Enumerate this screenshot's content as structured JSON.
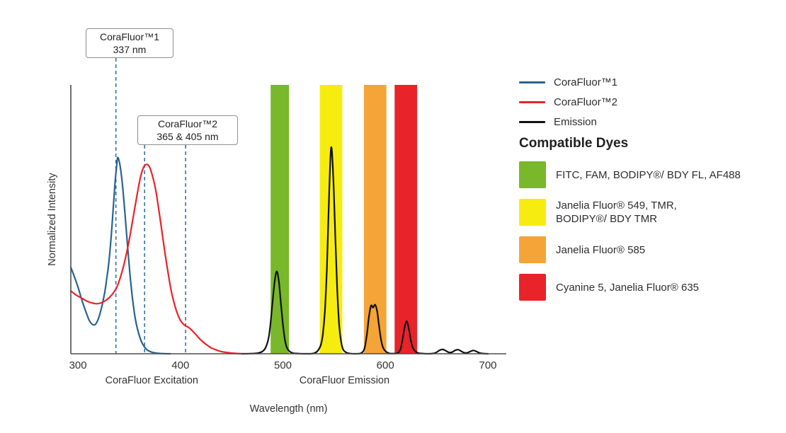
{
  "chart_data": {
    "type": "line",
    "title": "",
    "xlabel": "Wavelength (nm)",
    "ylabel": "Normalized Intensity",
    "xlim": [
      293,
      718
    ],
    "ylim": [
      0,
      1.37
    ],
    "grid": false,
    "legend_position": "right",
    "x_ticks": [
      300,
      400,
      500,
      600,
      700
    ],
    "x_axis_sublabels": [
      {
        "label": "CoraFluor Excitation",
        "anchor_nm": 372
      },
      {
        "label": "CoraFluor Emission",
        "anchor_nm": 560
      }
    ],
    "annotation_line_color": "#3572A3",
    "annotations": [
      {
        "title": "CoraFluor™1",
        "subtitle": "337 nm",
        "lines_nm": [
          337
        ]
      },
      {
        "title": "CoraFluor™2",
        "subtitle": "365 & 405 nm",
        "lines_nm": [
          365,
          405
        ]
      }
    ],
    "bands": [
      {
        "name": "green",
        "color": "#78B82A",
        "x0": 488,
        "x1": 506
      },
      {
        "name": "yellow",
        "color": "#F7EC0F",
        "x0": 536,
        "x1": 558
      },
      {
        "name": "orange",
        "color": "#F5A437",
        "x0": 579,
        "x1": 601
      },
      {
        "name": "red",
        "color": "#E8232A",
        "x0": 609,
        "x1": 631
      }
    ],
    "series": [
      {
        "name": "CoraFluor™1",
        "id": "corafluor1-excitation",
        "color": "#27648F",
        "points": [
          [
            293,
            0.44
          ],
          [
            296,
            0.4
          ],
          [
            300,
            0.34
          ],
          [
            304,
            0.27
          ],
          [
            308,
            0.21
          ],
          [
            311,
            0.17
          ],
          [
            314,
            0.15
          ],
          [
            317,
            0.15
          ],
          [
            320,
            0.18
          ],
          [
            323,
            0.235
          ],
          [
            326,
            0.31
          ],
          [
            328,
            0.38
          ],
          [
            330,
            0.46
          ],
          [
            332,
            0.57
          ],
          [
            334,
            0.71
          ],
          [
            336,
            0.86
          ],
          [
            338,
            0.97
          ],
          [
            339,
            1.0
          ],
          [
            341,
            0.96
          ],
          [
            343,
            0.88
          ],
          [
            345,
            0.77
          ],
          [
            347,
            0.64
          ],
          [
            349,
            0.51
          ],
          [
            351,
            0.39
          ],
          [
            353,
            0.29
          ],
          [
            355,
            0.21
          ],
          [
            357,
            0.15
          ],
          [
            360,
            0.09
          ],
          [
            363,
            0.05
          ],
          [
            367,
            0.022
          ],
          [
            371,
            0.01
          ],
          [
            376,
            0.004
          ],
          [
            382,
            0.001
          ],
          [
            390,
            0
          ]
        ]
      },
      {
        "name": "CoraFluor™2",
        "id": "corafluor2-excitation",
        "color": "#E8232A",
        "points": [
          [
            293,
            0.32
          ],
          [
            298,
            0.3
          ],
          [
            303,
            0.285
          ],
          [
            308,
            0.27
          ],
          [
            313,
            0.26
          ],
          [
            318,
            0.255
          ],
          [
            323,
            0.26
          ],
          [
            328,
            0.275
          ],
          [
            333,
            0.3
          ],
          [
            338,
            0.34
          ],
          [
            342,
            0.4
          ],
          [
            346,
            0.48
          ],
          [
            350,
            0.58
          ],
          [
            354,
            0.7
          ],
          [
            358,
            0.82
          ],
          [
            361,
            0.9
          ],
          [
            364,
            0.95
          ],
          [
            367,
            0.965
          ],
          [
            370,
            0.95
          ],
          [
            373,
            0.9
          ],
          [
            376,
            0.83
          ],
          [
            379,
            0.73
          ],
          [
            382,
            0.62
          ],
          [
            385,
            0.51
          ],
          [
            388,
            0.41
          ],
          [
            391,
            0.32
          ],
          [
            394,
            0.255
          ],
          [
            397,
            0.205
          ],
          [
            400,
            0.17
          ],
          [
            403,
            0.15
          ],
          [
            406,
            0.14
          ],
          [
            409,
            0.13
          ],
          [
            412,
            0.115
          ],
          [
            415,
            0.098
          ],
          [
            418,
            0.08
          ],
          [
            422,
            0.06
          ],
          [
            426,
            0.044
          ],
          [
            430,
            0.03
          ],
          [
            435,
            0.019
          ],
          [
            440,
            0.011
          ],
          [
            446,
            0.006
          ],
          [
            453,
            0.002
          ],
          [
            460,
            0
          ]
        ]
      },
      {
        "name": "Emission",
        "id": "emission",
        "color": "#111111",
        "points": [
          [
            460,
            0
          ],
          [
            470,
            0.001
          ],
          [
            476,
            0.004
          ],
          [
            480,
            0.012
          ],
          [
            483,
            0.03
          ],
          [
            486,
            0.08
          ],
          [
            488,
            0.16
          ],
          [
            490,
            0.27
          ],
          [
            492,
            0.37
          ],
          [
            494,
            0.42
          ],
          [
            496,
            0.37
          ],
          [
            498,
            0.26
          ],
          [
            500,
            0.15
          ],
          [
            502,
            0.07
          ],
          [
            504,
            0.03
          ],
          [
            507,
            0.01
          ],
          [
            510,
            0.003
          ],
          [
            515,
            0.001
          ],
          [
            520,
            0
          ],
          [
            527,
            0
          ],
          [
            531,
            0.004
          ],
          [
            534,
            0.015
          ],
          [
            537,
            0.045
          ],
          [
            539,
            0.1
          ],
          [
            541,
            0.22
          ],
          [
            543,
            0.45
          ],
          [
            545,
            0.8
          ],
          [
            547,
            1.05
          ],
          [
            549,
            0.92
          ],
          [
            551,
            0.62
          ],
          [
            553,
            0.33
          ],
          [
            555,
            0.14
          ],
          [
            557,
            0.055
          ],
          [
            559,
            0.02
          ],
          [
            562,
            0.006
          ],
          [
            566,
            0.001
          ],
          [
            570,
            0
          ],
          [
            575,
            0.001
          ],
          [
            578,
            0.01
          ],
          [
            580,
            0.035
          ],
          [
            582,
            0.1
          ],
          [
            584,
            0.19
          ],
          [
            586,
            0.245
          ],
          [
            588,
            0.235
          ],
          [
            590,
            0.25
          ],
          [
            592,
            0.215
          ],
          [
            594,
            0.135
          ],
          [
            596,
            0.065
          ],
          [
            598,
            0.028
          ],
          [
            601,
            0.009
          ],
          [
            604,
            0.002
          ],
          [
            608,
            0.001
          ],
          [
            611,
            0.002
          ],
          [
            613,
            0.008
          ],
          [
            615,
            0.028
          ],
          [
            617,
            0.08
          ],
          [
            619,
            0.14
          ],
          [
            621,
            0.165
          ],
          [
            623,
            0.125
          ],
          [
            625,
            0.065
          ],
          [
            627,
            0.028
          ],
          [
            630,
            0.009
          ],
          [
            633,
            0.003
          ],
          [
            637,
            0.001
          ],
          [
            642,
            0
          ],
          [
            647,
            0.002
          ],
          [
            650,
            0.008
          ],
          [
            653,
            0.018
          ],
          [
            656,
            0.022
          ],
          [
            659,
            0.015
          ],
          [
            662,
            0.007
          ],
          [
            665,
            0.008
          ],
          [
            668,
            0.017
          ],
          [
            671,
            0.021
          ],
          [
            674,
            0.013
          ],
          [
            677,
            0.005
          ],
          [
            680,
            0.005
          ],
          [
            683,
            0.012
          ],
          [
            686,
            0.017
          ],
          [
            689,
            0.011
          ],
          [
            692,
            0.004
          ],
          [
            696,
            0.001
          ],
          [
            700,
            0
          ]
        ]
      }
    ]
  },
  "legend": {
    "items": [
      {
        "label": "CoraFluor™1",
        "color": "#27648F"
      },
      {
        "label": "CoraFluor™2",
        "color": "#E8232A"
      },
      {
        "label": "Emission",
        "color": "#111111"
      }
    ]
  },
  "compatible_dyes": {
    "heading": "Compatible Dyes",
    "items": [
      {
        "color": "#78B82A",
        "label": "FITC, FAM, BODIPY®/ BDY FL, AF488",
        "label2": ""
      },
      {
        "color": "#F7EC0F",
        "label": "Janelia Fluor® 549, TMR,",
        "label2": "BODIPY®/ BDY TMR"
      },
      {
        "color": "#F5A437",
        "label": "Janelia Fluor® 585",
        "label2": ""
      },
      {
        "color": "#E8232A",
        "label": "Cyanine 5, Janelia Fluor® 635",
        "label2": ""
      }
    ]
  }
}
